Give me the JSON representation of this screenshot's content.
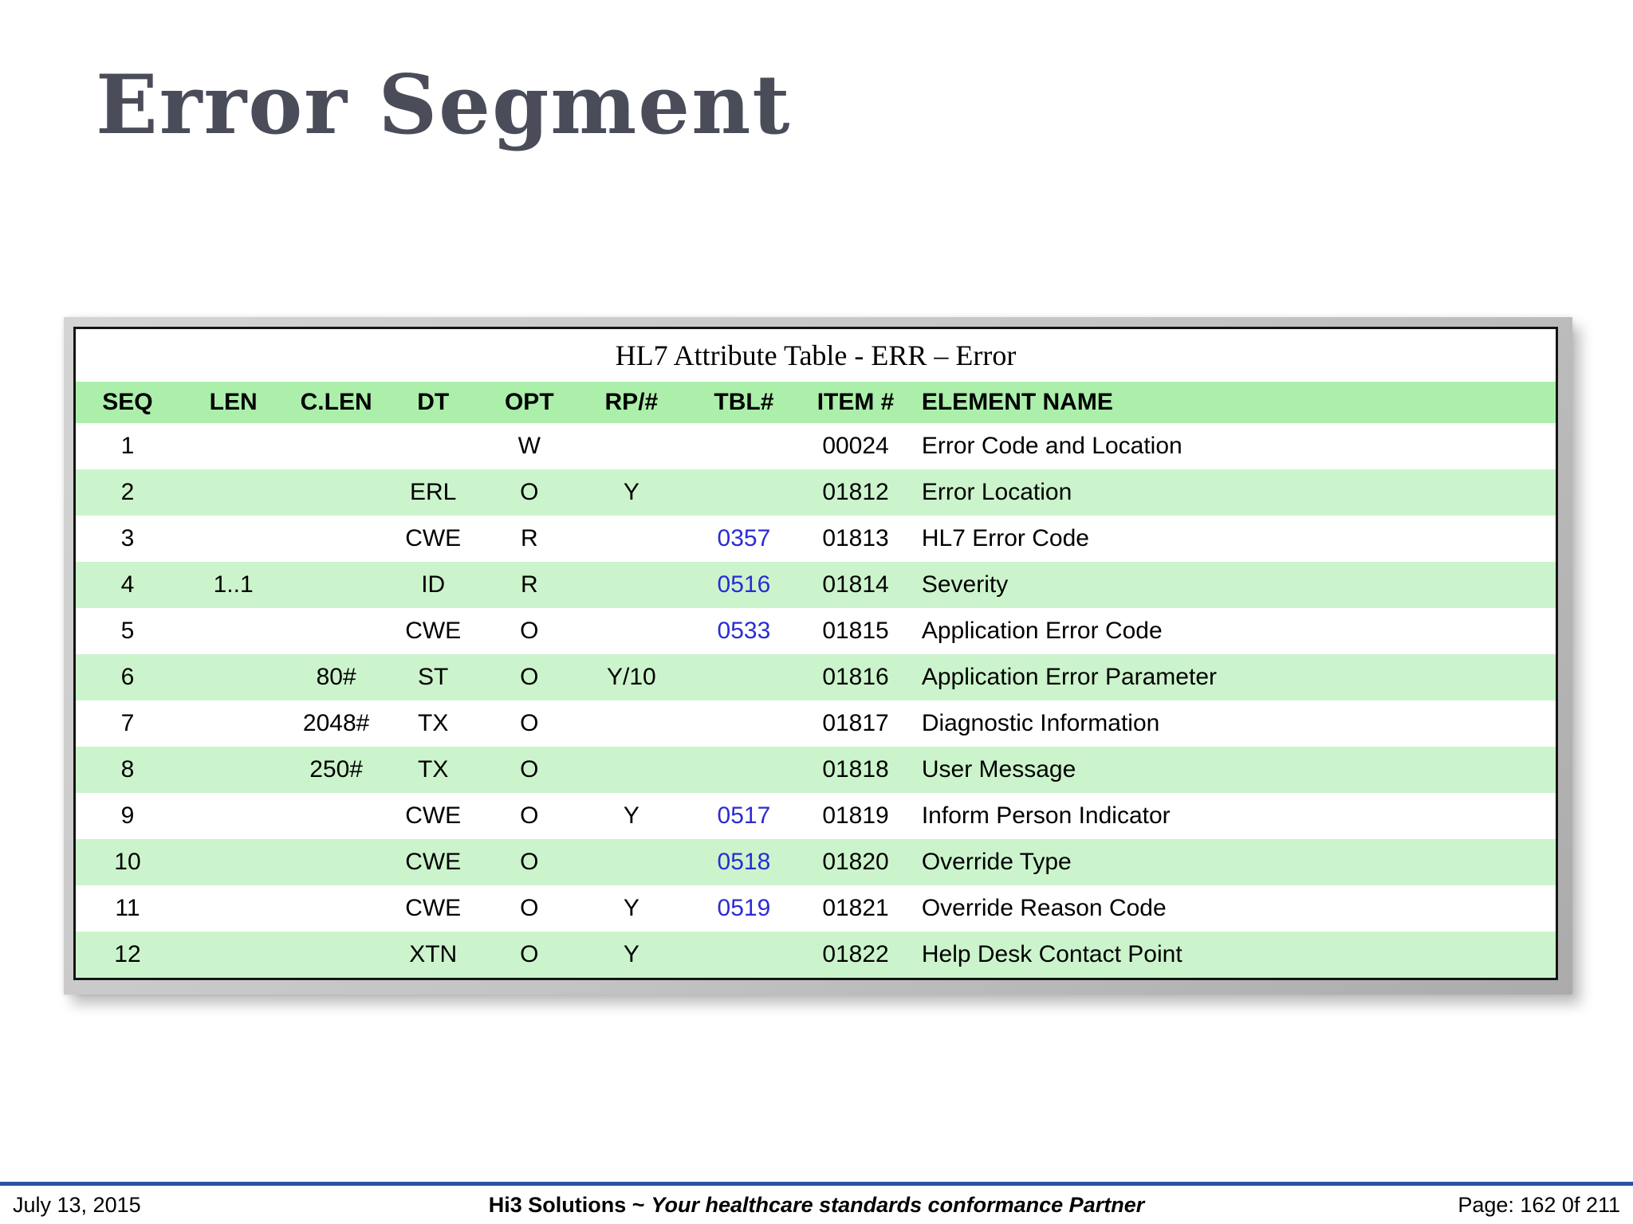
{
  "slide": {
    "title": "Error Segment"
  },
  "table": {
    "title": "HL7 Attribute Table - ERR – Error",
    "columns": [
      "SEQ",
      "LEN",
      "C.LEN",
      "DT",
      "OPT",
      "RP/#",
      "TBL#",
      "ITEM #",
      "ELEMENT NAME"
    ],
    "rows": [
      {
        "seq": "1",
        "len": "",
        "clen": "",
        "dt": "",
        "opt": "W",
        "rp": "",
        "tbl": "",
        "item": "00024",
        "name": "Error Code and Location"
      },
      {
        "seq": "2",
        "len": "",
        "clen": "",
        "dt": "ERL",
        "opt": "O",
        "rp": "Y",
        "tbl": "",
        "item": "01812",
        "name": "Error Location"
      },
      {
        "seq": "3",
        "len": "",
        "clen": "",
        "dt": "CWE",
        "opt": "R",
        "rp": "",
        "tbl": "0357",
        "item": "01813",
        "name": "HL7 Error Code"
      },
      {
        "seq": "4",
        "len": "1..1",
        "clen": "",
        "dt": "ID",
        "opt": "R",
        "rp": "",
        "tbl": "0516",
        "item": "01814",
        "name": "Severity"
      },
      {
        "seq": "5",
        "len": "",
        "clen": "",
        "dt": "CWE",
        "opt": "O",
        "rp": "",
        "tbl": "0533",
        "item": "01815",
        "name": "Application Error Code"
      },
      {
        "seq": "6",
        "len": "",
        "clen": "80#",
        "dt": "ST",
        "opt": "O",
        "rp": "Y/10",
        "tbl": "",
        "item": "01816",
        "name": "Application Error Parameter"
      },
      {
        "seq": "7",
        "len": "",
        "clen": "2048#",
        "dt": "TX",
        "opt": "O",
        "rp": "",
        "tbl": "",
        "item": "01817",
        "name": "Diagnostic Information"
      },
      {
        "seq": "8",
        "len": "",
        "clen": "250#",
        "dt": "TX",
        "opt": "O",
        "rp": "",
        "tbl": "",
        "item": "01818",
        "name": "User Message"
      },
      {
        "seq": "9",
        "len": "",
        "clen": "",
        "dt": "CWE",
        "opt": "O",
        "rp": "Y",
        "tbl": "0517",
        "item": "01819",
        "name": "Inform Person Indicator"
      },
      {
        "seq": "10",
        "len": "",
        "clen": "",
        "dt": "CWE",
        "opt": "O",
        "rp": "",
        "tbl": "0518",
        "item": "01820",
        "name": "Override Type"
      },
      {
        "seq": "11",
        "len": "",
        "clen": "",
        "dt": "CWE",
        "opt": "O",
        "rp": "Y",
        "tbl": "0519",
        "item": "01821",
        "name": "Override Reason Code"
      },
      {
        "seq": "12",
        "len": "",
        "clen": "",
        "dt": "XTN",
        "opt": "O",
        "rp": "Y",
        "tbl": "",
        "item": "01822",
        "name": "Help Desk Contact Point"
      }
    ],
    "colors": {
      "header_bg": "#abefab",
      "row_alt_bg": "#ccf4cc",
      "link": "#2b2bd5"
    }
  },
  "footer": {
    "date": "July 13, 2015",
    "brand": "Hi3 Solutions ~",
    "tagline": "Your healthcare standards conformance Partner",
    "page": "Page: 162 0f 211",
    "line_color": "#2a51a5"
  }
}
